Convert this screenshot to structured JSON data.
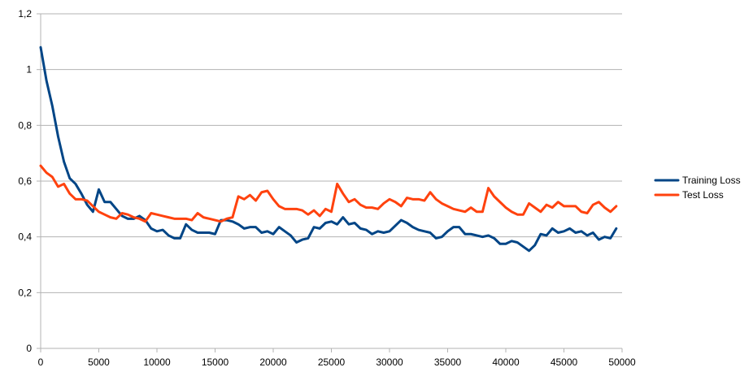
{
  "chart_data": {
    "type": "line",
    "title": "",
    "xlabel": "",
    "ylabel": "",
    "xlim": [
      0,
      50000
    ],
    "ylim": [
      0,
      1.2
    ],
    "x_ticks": [
      "0",
      "5000",
      "10000",
      "15000",
      "20000",
      "25000",
      "30000",
      "35000",
      "40000",
      "45000",
      "50000"
    ],
    "y_ticks": [
      "0",
      "0,2",
      "0,4",
      "0,6",
      "0,8",
      "1",
      "1,2"
    ],
    "grid": "horizontal",
    "legend_position": "right",
    "x": [
      0,
      500,
      1000,
      1500,
      2000,
      2500,
      3000,
      3500,
      4000,
      4500,
      5000,
      5500,
      6000,
      6500,
      7000,
      7500,
      8000,
      8500,
      9000,
      9500,
      10000,
      10500,
      11000,
      11500,
      12000,
      12500,
      13000,
      13500,
      14000,
      14500,
      15000,
      15500,
      16000,
      16500,
      17000,
      17500,
      18000,
      18500,
      19000,
      19500,
      20000,
      20500,
      21000,
      21500,
      22000,
      22500,
      23000,
      23500,
      24000,
      24500,
      25000,
      25500,
      26000,
      26500,
      27000,
      27500,
      28000,
      28500,
      29000,
      29500,
      30000,
      30500,
      31000,
      31500,
      32000,
      32500,
      33000,
      33500,
      34000,
      34500,
      35000,
      35500,
      36000,
      36500,
      37000,
      37500,
      38000,
      38500,
      39000,
      39500,
      40000,
      40500,
      41000,
      41500,
      42000,
      42500,
      43000,
      43500,
      44000,
      44500,
      45000,
      45500,
      46000,
      46500,
      47000,
      47500,
      48000,
      48500,
      49000,
      49500
    ],
    "series": [
      {
        "name": "Training Loss",
        "color": "#004586",
        "values": [
          1.08,
          0.96,
          0.87,
          0.76,
          0.67,
          0.61,
          0.59,
          0.555,
          0.515,
          0.49,
          0.57,
          0.525,
          0.525,
          0.5,
          0.475,
          0.465,
          0.465,
          0.475,
          0.46,
          0.43,
          0.42,
          0.425,
          0.405,
          0.395,
          0.395,
          0.445,
          0.425,
          0.415,
          0.415,
          0.415,
          0.41,
          0.46,
          0.46,
          0.455,
          0.445,
          0.43,
          0.435,
          0.435,
          0.415,
          0.42,
          0.41,
          0.435,
          0.42,
          0.405,
          0.38,
          0.39,
          0.395,
          0.435,
          0.43,
          0.45,
          0.455,
          0.445,
          0.47,
          0.445,
          0.45,
          0.43,
          0.425,
          0.41,
          0.42,
          0.415,
          0.42,
          0.44,
          0.46,
          0.45,
          0.435,
          0.425,
          0.42,
          0.415,
          0.395,
          0.4,
          0.42,
          0.435,
          0.435,
          0.41,
          0.41,
          0.405,
          0.4,
          0.405,
          0.395,
          0.375,
          0.375,
          0.385,
          0.38,
          0.365,
          0.35,
          0.37,
          0.41,
          0.405,
          0.43,
          0.415,
          0.42,
          0.43,
          0.415,
          0.42,
          0.405,
          0.415,
          0.39,
          0.4,
          0.395,
          0.43
        ]
      },
      {
        "name": "Test Loss",
        "color": "#ff420e",
        "values": [
          0.655,
          0.63,
          0.615,
          0.58,
          0.59,
          0.555,
          0.535,
          0.535,
          0.53,
          0.51,
          0.49,
          0.48,
          0.47,
          0.465,
          0.485,
          0.48,
          0.47,
          0.465,
          0.455,
          0.485,
          0.48,
          0.475,
          0.47,
          0.465,
          0.465,
          0.465,
          0.46,
          0.485,
          0.47,
          0.465,
          0.46,
          0.455,
          0.465,
          0.47,
          0.545,
          0.535,
          0.55,
          0.53,
          0.56,
          0.565,
          0.535,
          0.51,
          0.5,
          0.5,
          0.5,
          0.495,
          0.48,
          0.495,
          0.475,
          0.5,
          0.49,
          0.59,
          0.555,
          0.525,
          0.535,
          0.515,
          0.505,
          0.505,
          0.5,
          0.52,
          0.535,
          0.525,
          0.51,
          0.54,
          0.535,
          0.535,
          0.53,
          0.56,
          0.535,
          0.52,
          0.51,
          0.5,
          0.495,
          0.49,
          0.505,
          0.49,
          0.49,
          0.575,
          0.545,
          0.525,
          0.505,
          0.49,
          0.48,
          0.48,
          0.52,
          0.505,
          0.49,
          0.515,
          0.505,
          0.525,
          0.51,
          0.51,
          0.51,
          0.49,
          0.485,
          0.515,
          0.525,
          0.505,
          0.49,
          0.51
        ]
      }
    ]
  }
}
